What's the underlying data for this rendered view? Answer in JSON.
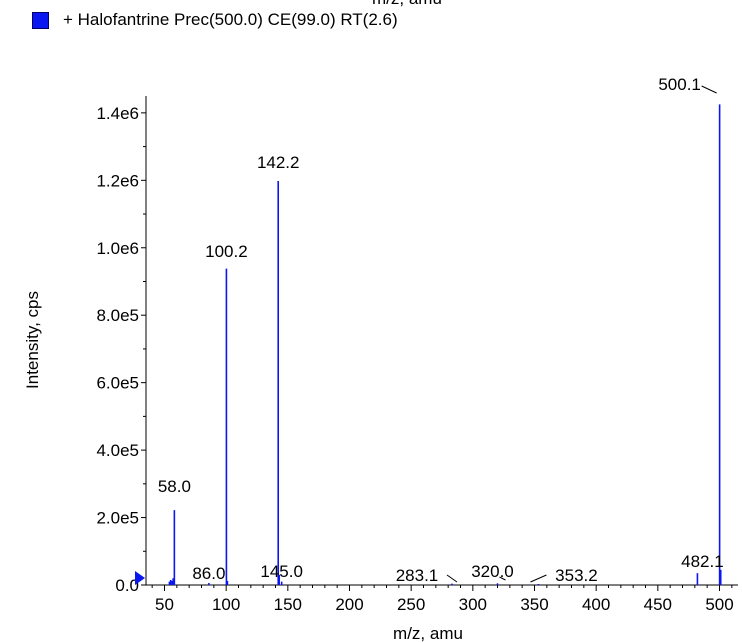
{
  "header": {
    "cut_axis_label": "m/z, amu",
    "legend_label": "+ Halofantrine Prec(500.0) CE(99.0) RT(2.6)"
  },
  "colors": {
    "series": "#0a17f0",
    "axis": "#000000"
  },
  "chart_data": {
    "type": "bar",
    "xlabel": "m/z, amu",
    "ylabel": "Intensity, cps",
    "xlim": [
      35,
      515
    ],
    "ylim": [
      0,
      1450000
    ],
    "x_ticks": [
      50,
      100,
      150,
      200,
      250,
      300,
      350,
      400,
      450,
      500
    ],
    "x_tick_labels": [
      "50",
      "100",
      "150",
      "200",
      "250",
      "300",
      "350",
      "400",
      "450",
      "500"
    ],
    "y_ticks": [
      0,
      200000,
      400000,
      600000,
      800000,
      1000000,
      1200000,
      1400000
    ],
    "y_tick_labels": [
      "0.0",
      "2.0e5",
      "4.0e5",
      "6.0e5",
      "8.0e5",
      "1.0e6",
      "1.2e6",
      "1.4e6"
    ],
    "grid": false,
    "legend_position": "top-left",
    "series": [
      {
        "name": "+ Halofantrine Prec(500.0) CE(99.0) RT(2.6)",
        "peaks": [
          {
            "x": 54.0,
            "y": 10000
          },
          {
            "x": 55.0,
            "y": 15000
          },
          {
            "x": 56.0,
            "y": 12000
          },
          {
            "x": 57.0,
            "y": 20000
          },
          {
            "x": 58.0,
            "y": 222000
          },
          {
            "x": 86.0,
            "y": 6000
          },
          {
            "x": 100.2,
            "y": 938000
          },
          {
            "x": 101.0,
            "y": 12000
          },
          {
            "x": 142.2,
            "y": 1198000
          },
          {
            "x": 143.0,
            "y": 30000
          },
          {
            "x": 145.0,
            "y": 10000
          },
          {
            "x": 283.1,
            "y": 4000
          },
          {
            "x": 320.0,
            "y": 5000
          },
          {
            "x": 353.2,
            "y": 3000
          },
          {
            "x": 482.1,
            "y": 35000
          },
          {
            "x": 500.1,
            "y": 1425000
          },
          {
            "x": 501.0,
            "y": 45000
          }
        ]
      }
    ],
    "annotations": [
      {
        "text": "58.0",
        "x": 58.0
      },
      {
        "text": "86.0",
        "x": 86.0
      },
      {
        "text": "100.2",
        "x": 100.2
      },
      {
        "text": "142.2",
        "x": 142.2
      },
      {
        "text": "145.0",
        "x": 145.0
      },
      {
        "text": "283.1",
        "x": 283.1
      },
      {
        "text": "320.0",
        "x": 320.0
      },
      {
        "text": "353.2",
        "x": 353.2
      },
      {
        "text": "482.1",
        "x": 482.1
      },
      {
        "text": "500.1",
        "x": 500.1
      }
    ]
  }
}
